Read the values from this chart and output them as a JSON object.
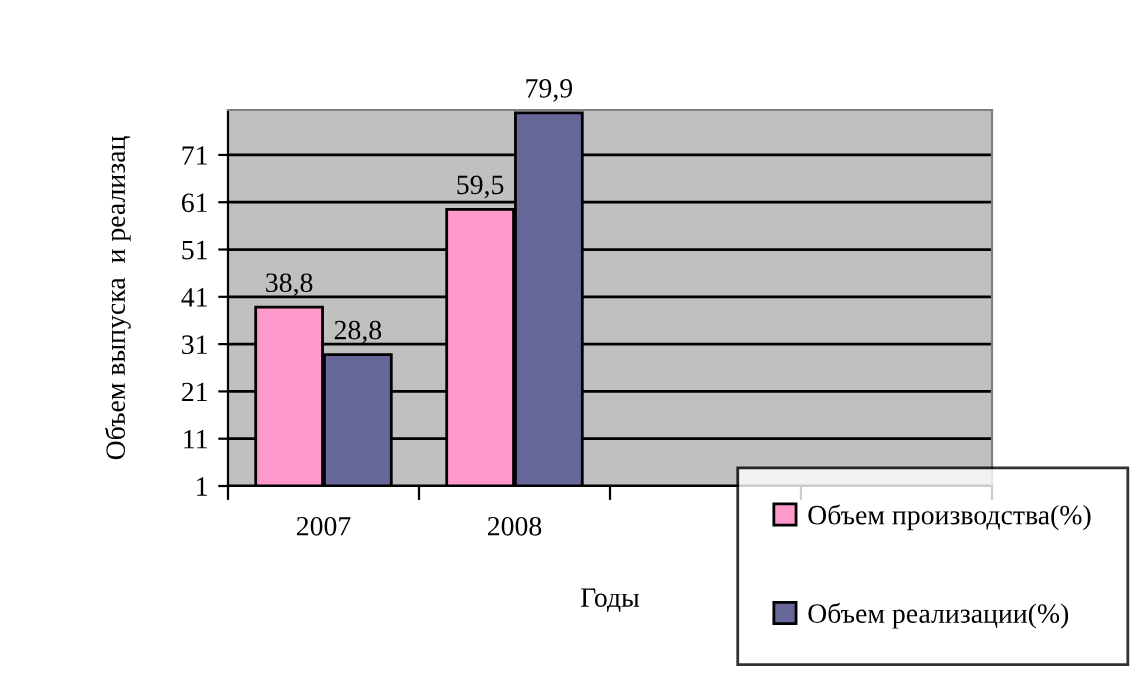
{
  "chart_data": {
    "type": "bar",
    "xlabel": "Годы",
    "ylabel": "Объем выпуска  и реализац",
    "categories": [
      "2007",
      "2008",
      null,
      null
    ],
    "series": [
      {
        "name": "Объем производства(%)",
        "color": "#ff99cc",
        "values": [
          38.8,
          59.5,
          null,
          null
        ]
      },
      {
        "name": "Объем реализации(%)",
        "color": "#666699",
        "values": [
          28.8,
          79.9,
          null,
          null
        ]
      }
    ],
    "value_labels": [
      "38,8",
      "59,5",
      "28,8",
      "79,9"
    ],
    "ylim": [
      1,
      80.5
    ],
    "yticks": [
      1,
      11,
      21,
      31,
      41,
      51,
      61,
      71
    ],
    "grid": "y",
    "legend": "bottom right"
  }
}
